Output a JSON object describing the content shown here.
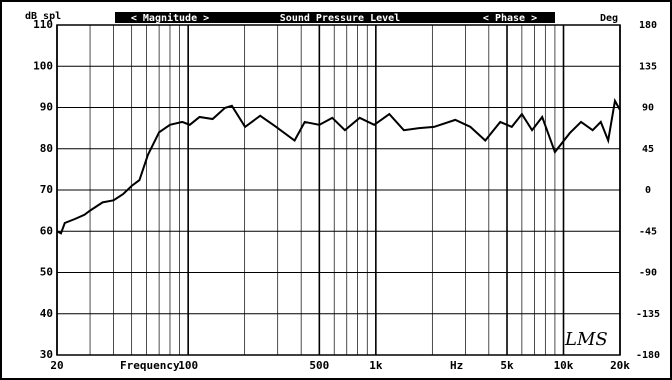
{
  "chart_data": {
    "type": "line",
    "title": "Sound Pressure Level",
    "left_tab": "< Magnitude >",
    "right_tab": "< Phase >",
    "ylabel": "dB spl",
    "y2label": "Deg",
    "xlabel": "Frequency",
    "xunit": "Hz",
    "logo": "LMS",
    "xscale": "log",
    "xlim": [
      20,
      20000
    ],
    "xticks": [
      20,
      100,
      500,
      {
        "value": 1000,
        "label": "1k"
      },
      {
        "value": 5000,
        "label": "5k"
      },
      {
        "value": 10000,
        "label": "10k"
      },
      {
        "value": 20000,
        "label": "20k"
      }
    ],
    "xminor": [
      30,
      40,
      50,
      60,
      70,
      80,
      90,
      200,
      300,
      400,
      600,
      700,
      800,
      900,
      2000,
      3000,
      4000,
      6000,
      7000,
      8000,
      9000
    ],
    "ylim": [
      30,
      110
    ],
    "yticks": [
      30,
      40,
      50,
      60,
      70,
      80,
      90,
      100,
      110
    ],
    "y2lim": [
      -180,
      180
    ],
    "y2ticks": [
      -180,
      -135,
      -90,
      -45,
      0,
      45,
      90,
      135,
      180
    ],
    "grid": true,
    "series": [
      {
        "name": "Magnitude",
        "color": "#000000",
        "x": [
          20,
          21,
          22,
          25,
          28,
          30,
          35,
          40,
          45,
          50,
          55,
          61,
          70,
          80,
          93,
          102,
          115,
          135,
          157,
          171,
          201,
          242,
          290,
          369,
          418,
          500,
          586,
          684,
          820,
          980,
          1180,
          1410,
          1700,
          2040,
          2650,
          3190,
          3830,
          4600,
          5300,
          6000,
          6800,
          7700,
          9000,
          10800,
          12400,
          14300,
          15800,
          17300,
          18800,
          20000
        ],
        "values": [
          60,
          59.5,
          62,
          63,
          64,
          65,
          67,
          67.5,
          69,
          71,
          72.4,
          78.5,
          84,
          85.8,
          86.5,
          85.8,
          87.7,
          87.2,
          89.9,
          90.4,
          85.3,
          88,
          85.5,
          82,
          86.5,
          85.8,
          87.5,
          84.5,
          87.5,
          85.8,
          88.4,
          84.5,
          85,
          85.3,
          87,
          85.3,
          82,
          86.5,
          85.3,
          88.4,
          84.5,
          87.7,
          79.2,
          83.8,
          86.5,
          84.5,
          86.5,
          82,
          91.6,
          89.4
        ]
      }
    ]
  }
}
